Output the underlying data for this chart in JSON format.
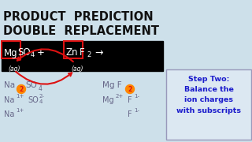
{
  "bg_color": "#cde0ea",
  "title_line1": "PRODUCT  PREDICTION",
  "title_line2": "DOUBLE  REPLACEMENT",
  "title_color": "#111111",
  "title_fontsize": 10.5,
  "rxn_box_color": "#000000",
  "step_text": "Step Two:\nBalance the\nion charges\nwith subscripts",
  "step_text_color": "#1a1acc",
  "step_box_color": "#dce8f2",
  "step_box_edge": "#9999bb",
  "text_color": "#666688",
  "white": "#ffffff",
  "red": "#dd1111",
  "orange": "#ff8800"
}
